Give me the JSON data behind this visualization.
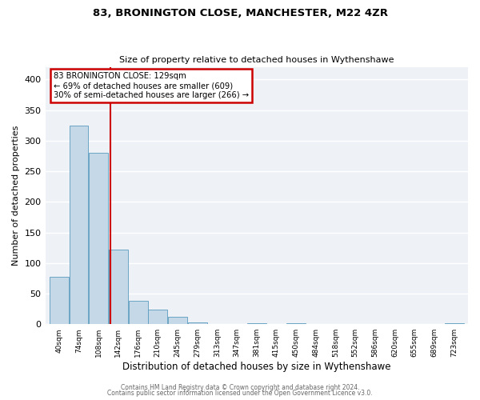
{
  "title1": "83, BRONINGTON CLOSE, MANCHESTER, M22 4ZR",
  "title2": "Size of property relative to detached houses in Wythenshawe",
  "xlabel": "Distribution of detached houses by size in Wythenshawe",
  "ylabel": "Number of detached properties",
  "bin_labels": [
    "40sqm",
    "74sqm",
    "108sqm",
    "142sqm",
    "176sqm",
    "210sqm",
    "245sqm",
    "279sqm",
    "313sqm",
    "347sqm",
    "381sqm",
    "415sqm",
    "450sqm",
    "484sqm",
    "518sqm",
    "552sqm",
    "586sqm",
    "620sqm",
    "655sqm",
    "689sqm",
    "723sqm"
  ],
  "bar_heights": [
    77,
    325,
    280,
    122,
    38,
    24,
    12,
    3,
    0,
    0,
    2,
    0,
    2,
    0,
    0,
    0,
    0,
    0,
    0,
    0,
    2
  ],
  "bar_color": "#c5d8e8",
  "bar_edge_color": "#5a9abf",
  "ylim": [
    0,
    420
  ],
  "yticks": [
    0,
    50,
    100,
    150,
    200,
    250,
    300,
    350,
    400
  ],
  "vline_color": "#cc0000",
  "annotation_title": "83 BRONINGTON CLOSE: 129sqm",
  "annotation_line2": "← 69% of detached houses are smaller (609)",
  "annotation_line3": "30% of semi-detached houses are larger (266) →",
  "annotation_box_color": "#cc0000",
  "footer1": "Contains HM Land Registry data © Crown copyright and database right 2024.",
  "footer2": "Contains public sector information licensed under the Open Government Licence v3.0.",
  "background_color": "#eef2f7"
}
